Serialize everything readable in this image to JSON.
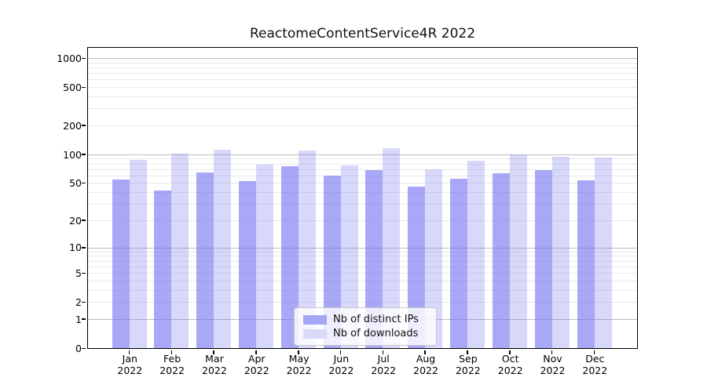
{
  "title": "ReactomeContentService4R 2022",
  "chart_data": {
    "type": "bar",
    "title": "ReactomeContentService4R 2022",
    "categories": [
      "Jan",
      "Feb",
      "Mar",
      "Apr",
      "May",
      "Jun",
      "Jul",
      "Aug",
      "Sep",
      "Oct",
      "Nov",
      "Dec"
    ],
    "year_label": "2022",
    "series": [
      {
        "name": "Nb of distinct IPs",
        "swatch_color": "#a6a6f6",
        "fill_rgba": "rgba(110,110,242,0.60)",
        "values": [
          54,
          42,
          65,
          52,
          75,
          60,
          68,
          46,
          55,
          63,
          68,
          53
        ]
      },
      {
        "name": "Nb of downloads",
        "swatch_color": "#d9d9f8",
        "fill_rgba": "rgba(110,110,242,0.27)",
        "values": [
          88,
          102,
          112,
          78,
          110,
          76,
          117,
          70,
          85,
          100,
          95,
          92
        ]
      }
    ],
    "y_scale": "log1p",
    "ylim": [
      0,
      1000
    ],
    "y_tick_labels": [
      1000,
      500,
      200,
      100,
      50,
      20,
      10,
      5,
      2,
      1,
      0
    ],
    "grid": {
      "on": true,
      "major_ticks": [
        1,
        10,
        100,
        1000
      ],
      "minor_ticks": [
        2,
        3,
        4,
        5,
        6,
        7,
        8,
        9,
        20,
        30,
        40,
        50,
        60,
        70,
        80,
        90,
        200,
        300,
        400,
        500,
        600,
        700,
        800,
        900
      ],
      "major_color": "#bdbdbd",
      "minor_color": "#eaeaea"
    },
    "legend": {
      "position": "bottom-center",
      "items": [
        "Nb of distinct IPs",
        "Nb of downloads"
      ]
    }
  }
}
